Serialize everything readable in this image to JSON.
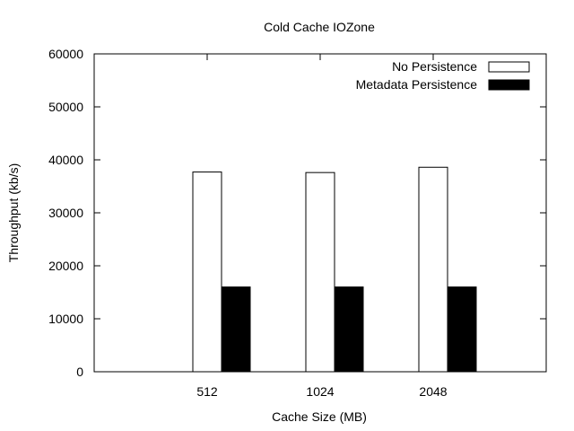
{
  "chart_data": {
    "type": "bar",
    "title": "Cold Cache IOZone",
    "xlabel": "Cache Size (MB)",
    "ylabel": "Throughput (kb/s)",
    "categories": [
      "512",
      "1024",
      "2048"
    ],
    "ylim": [
      0,
      60000
    ],
    "yticks": [
      0,
      10000,
      20000,
      30000,
      40000,
      50000,
      60000
    ],
    "legend_position": "top-right",
    "grid": false,
    "series": [
      {
        "name": "No Persistence",
        "values": [
          37700,
          37600,
          38600
        ],
        "color": "#ffffff"
      },
      {
        "name": "Metadata Persistence",
        "values": [
          16000,
          16000,
          16000
        ],
        "color": "#000000"
      }
    ]
  }
}
